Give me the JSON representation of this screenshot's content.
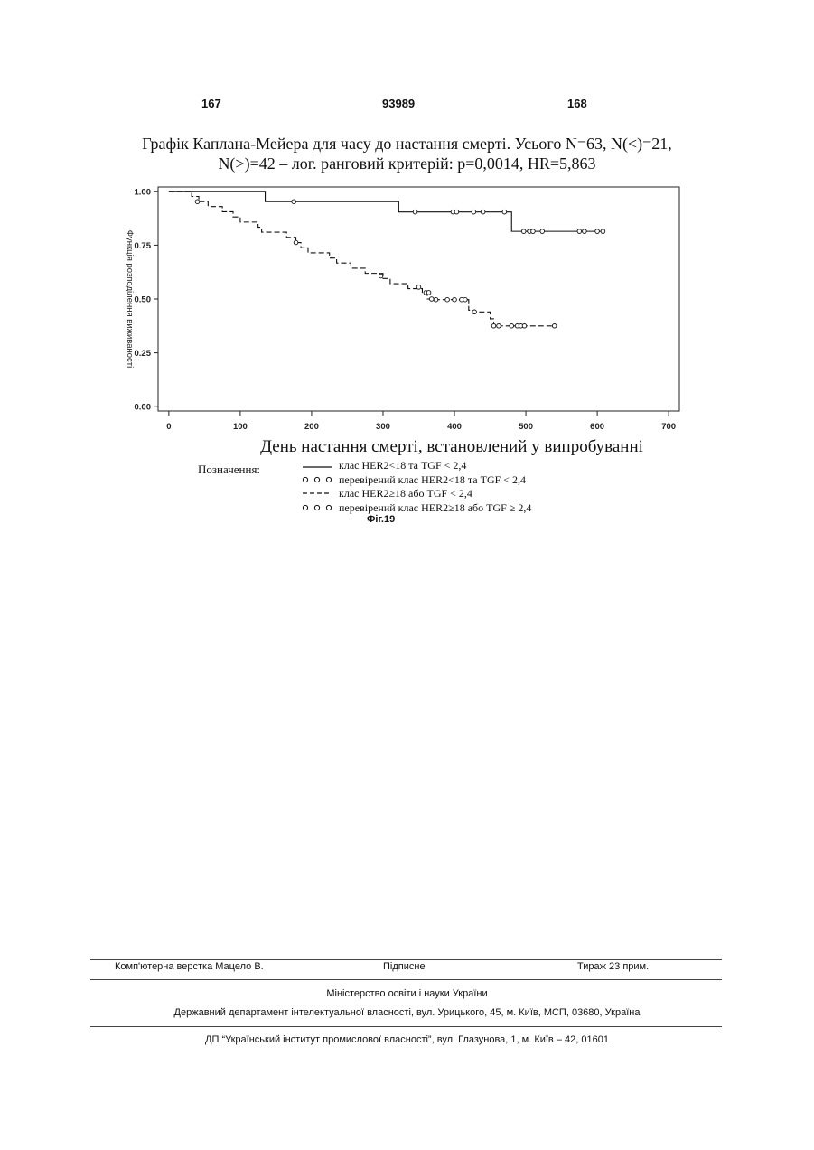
{
  "header": {
    "left": "167",
    "center": "93989",
    "right": "168"
  },
  "chart_title_line1": "Графік Каплана-Мейера для часу до настання смерті. Усього N=63, N(<)=21,",
  "chart_title_line2": "N(>)=42 – лог. ранговий критерій: p=0,0014, HR=5,863",
  "legend": {
    "heading": "Позначення:",
    "items": [
      {
        "symbol": "solid",
        "label": "клас  HER2<18 та TGF < 2,4"
      },
      {
        "symbol": "circles",
        "label": "перевірений клас  HER2<18 та TGF < 2,4"
      },
      {
        "symbol": "dashed",
        "label": "клас  HER2≥18 або TGF < 2,4"
      },
      {
        "symbol": "circles",
        "label": "перевірений клас  HER2≥18 або TGF ≥ 2,4"
      }
    ]
  },
  "figure_label": "Фіг.19",
  "chart_data": {
    "type": "line",
    "title": "",
    "xlabel": "День настання смерті, встановлений у випробуванні",
    "ylabel": "Функція розподілення виживаності",
    "xlim": [
      -15,
      715
    ],
    "ylim": [
      -0.02,
      1.02
    ],
    "xticks": [
      "0",
      "100",
      "200",
      "300",
      "400",
      "500",
      "600",
      "700"
    ],
    "yticks": [
      "0.00",
      "0.25",
      "0.50",
      "0.75",
      "1.00"
    ],
    "grid": false,
    "series": [
      {
        "name": "клас  HER2<18 та TGF < 2,4",
        "style": "solid",
        "steps": [
          [
            0,
            1.0
          ],
          [
            135,
            0.952
          ],
          [
            322,
            0.904
          ],
          [
            480,
            0.814
          ],
          [
            610,
            0.814
          ]
        ],
        "censored": [
          [
            175,
            0.952
          ],
          [
            345,
            0.904
          ],
          [
            398,
            0.904
          ],
          [
            403,
            0.904
          ],
          [
            427,
            0.904
          ],
          [
            440,
            0.904
          ],
          [
            470,
            0.904
          ],
          [
            497,
            0.814
          ],
          [
            505,
            0.814
          ],
          [
            510,
            0.814
          ],
          [
            523,
            0.814
          ],
          [
            575,
            0.814
          ],
          [
            582,
            0.814
          ],
          [
            600,
            0.814
          ],
          [
            608,
            0.814
          ]
        ]
      },
      {
        "name": "клас  HER2≥18 або TGF < 2,4",
        "style": "dashed",
        "steps": [
          [
            0,
            1.0
          ],
          [
            32,
            0.976
          ],
          [
            42,
            0.952
          ],
          [
            55,
            0.929
          ],
          [
            75,
            0.905
          ],
          [
            90,
            0.881
          ],
          [
            100,
            0.857
          ],
          [
            125,
            0.833
          ],
          [
            130,
            0.81
          ],
          [
            165,
            0.786
          ],
          [
            178,
            0.762
          ],
          [
            185,
            0.738
          ],
          [
            195,
            0.714
          ],
          [
            225,
            0.69
          ],
          [
            235,
            0.667
          ],
          [
            255,
            0.643
          ],
          [
            275,
            0.619
          ],
          [
            300,
            0.595
          ],
          [
            310,
            0.571
          ],
          [
            335,
            0.548
          ],
          [
            355,
            0.524
          ],
          [
            362,
            0.5
          ],
          [
            372,
            0.497
          ],
          [
            400,
            0.497
          ],
          [
            420,
            0.448
          ],
          [
            425,
            0.44
          ],
          [
            450,
            0.408
          ],
          [
            455,
            0.375
          ],
          [
            540,
            0.375
          ]
        ],
        "censored": [
          [
            40,
            0.952
          ],
          [
            178,
            0.762
          ],
          [
            297,
            0.607
          ],
          [
            350,
            0.555
          ],
          [
            360,
            0.53
          ],
          [
            364,
            0.53
          ],
          [
            368,
            0.5
          ],
          [
            374,
            0.497
          ],
          [
            390,
            0.497
          ],
          [
            400,
            0.497
          ],
          [
            410,
            0.497
          ],
          [
            415,
            0.497
          ],
          [
            428,
            0.44
          ],
          [
            455,
            0.375
          ],
          [
            462,
            0.375
          ],
          [
            480,
            0.375
          ],
          [
            488,
            0.375
          ],
          [
            493,
            0.375
          ],
          [
            498,
            0.375
          ],
          [
            540,
            0.375
          ]
        ]
      }
    ]
  },
  "footer": {
    "typesetter": "Комп'ютерна верстка Мацело В.",
    "signed": "Підписне",
    "circulation": "Тираж 23 прим.",
    "ministry": "Міністерство освіти і науки України",
    "department": "Державний департамент інтелектуальної власності, вул. Урицького, 45, м. Київ, МСП, 03680, Україна",
    "institute": "ДП “Український інститут промислової власності”, вул. Глазунова, 1, м. Київ – 42, 01601"
  }
}
